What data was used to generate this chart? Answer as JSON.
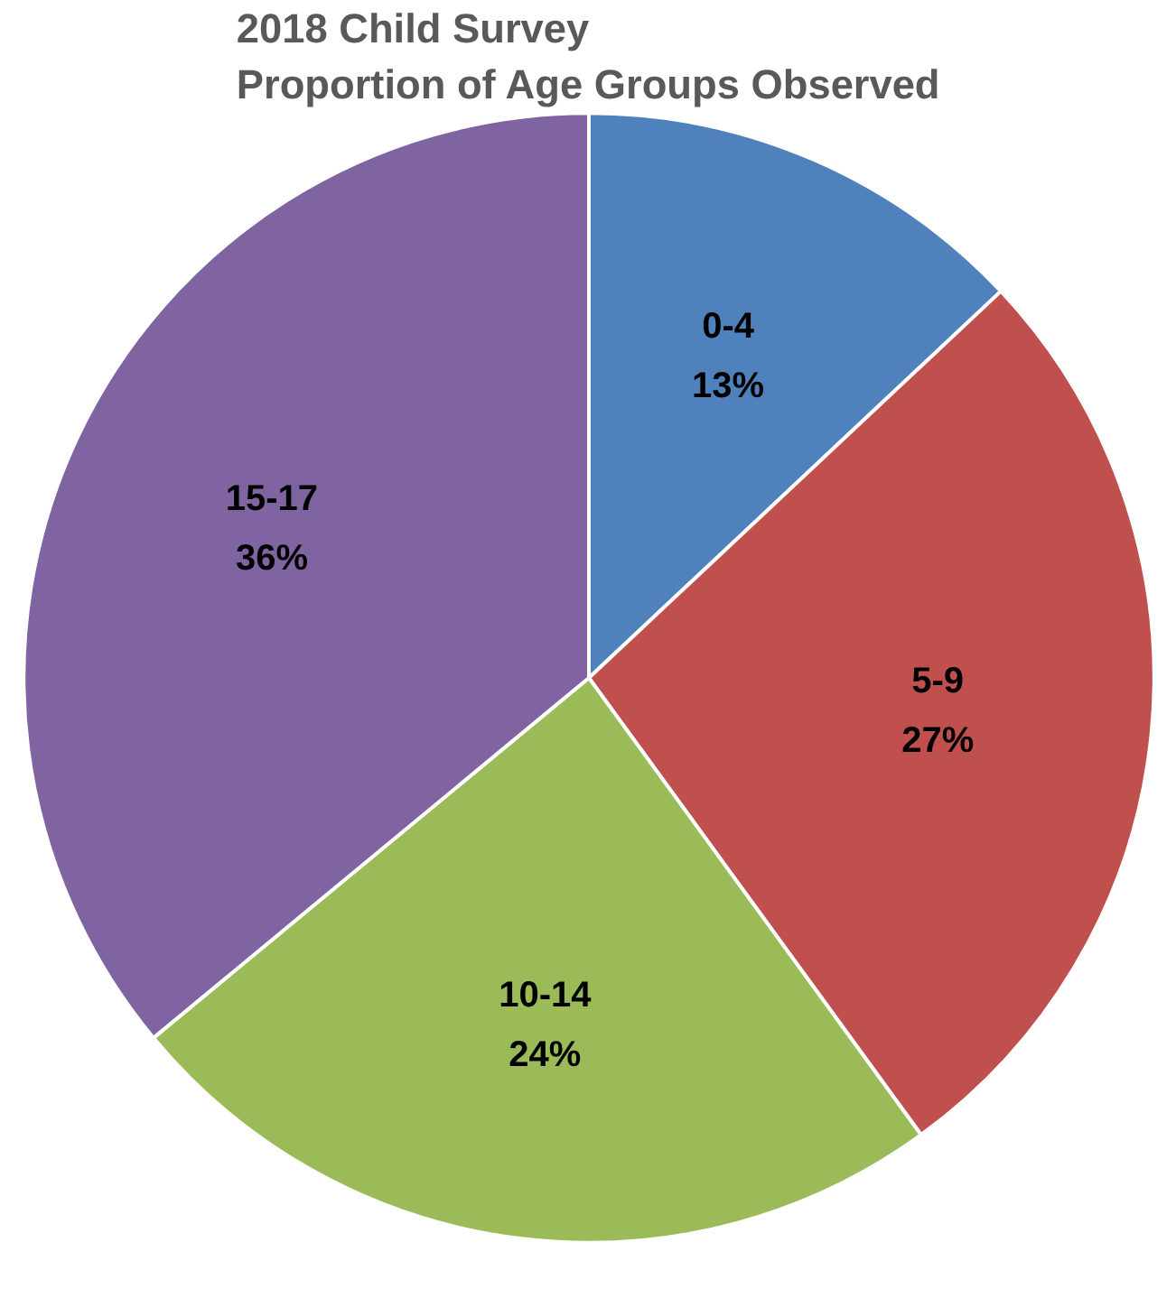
{
  "chart_data": {
    "type": "pie",
    "title": "2018 Child Survey\nProportion of Age Groups Observed",
    "categories": [
      "0-4",
      "5-9",
      "10-14",
      "15-17"
    ],
    "values": [
      13,
      27,
      24,
      36
    ],
    "colors": [
      "#4f81bd",
      "#c0504d",
      "#9bbb59",
      "#8064a2"
    ],
    "value_labels": [
      "13%",
      "27%",
      "24%",
      "36%"
    ]
  }
}
